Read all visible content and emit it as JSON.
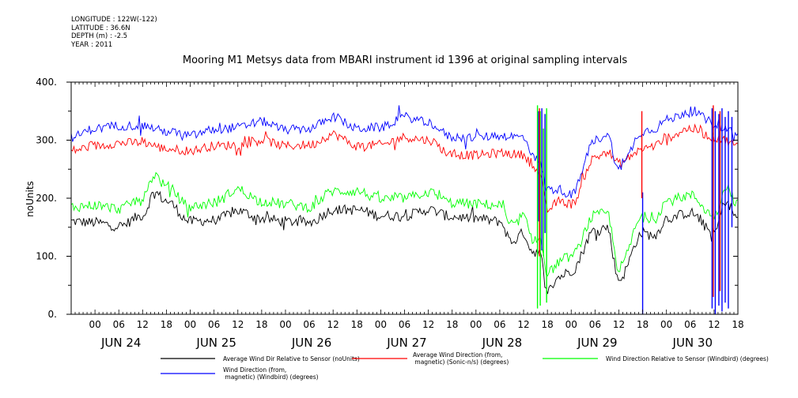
{
  "meta": {
    "longitude": "LONGITUDE : 122W(-122)",
    "latitude": "LATITUDE : 36.6N",
    "depth": "DEPTH (m) : -2.5",
    "year": "YEAR : 2011"
  },
  "chart_data": {
    "type": "line",
    "title": "Mooring M1 Metsys data from MBARI instrument id 1396 at original sampling intervals",
    "ylabel": "noUnits",
    "xlabel": "",
    "ylim": [
      0,
      400
    ],
    "xlim_hours": [
      -6,
      162
    ],
    "grid": false,
    "y_ticks": [
      "0.",
      "100.",
      "200.",
      "300.",
      "400."
    ],
    "y_tick_values": [
      0,
      100,
      200,
      300,
      400
    ],
    "hour_tick_labels": [
      "00",
      "06",
      "12",
      "18"
    ],
    "days": [
      "JUN 24",
      "JUN 25",
      "JUN 26",
      "JUN 27",
      "JUN 28",
      "JUN 29",
      "JUN 30"
    ],
    "series": [
      {
        "name": "Average Wind Dir Relative to Sensor (noUnits)",
        "color": "#000000",
        "x": [
          -6,
          0,
          6,
          12,
          15,
          18,
          24,
          30,
          36,
          42,
          48,
          54,
          60,
          66,
          72,
          78,
          84,
          90,
          96,
          102,
          105,
          108,
          110,
          112,
          114,
          117,
          120,
          126,
          129,
          132,
          138,
          141,
          144,
          150,
          156,
          159,
          162
        ],
        "y": [
          160,
          158,
          152,
          170,
          210,
          195,
          160,
          162,
          178,
          165,
          160,
          158,
          180,
          180,
          170,
          170,
          180,
          168,
          165,
          160,
          125,
          140,
          110,
          105,
          40,
          65,
          75,
          145,
          150,
          60,
          140,
          135,
          165,
          175,
          140,
          195,
          165
        ],
        "noise": 9
      },
      {
        "name": "Average Wind Direction (from, magnetic) (Sonic-n/s) (degrees)",
        "color": "#ff0000",
        "x": [
          -6,
          0,
          6,
          12,
          18,
          24,
          30,
          36,
          42,
          48,
          54,
          60,
          66,
          72,
          78,
          84,
          90,
          96,
          102,
          108,
          110,
          112,
          114,
          117,
          120,
          126,
          129,
          132,
          138,
          141,
          144,
          150,
          156,
          159,
          162
        ],
        "y": [
          282,
          290,
          295,
          296,
          285,
          282,
          290,
          292,
          300,
          290,
          292,
          310,
          290,
          292,
          305,
          300,
          275,
          274,
          278,
          275,
          260,
          240,
          180,
          195,
          190,
          270,
          280,
          260,
          285,
          290,
          305,
          320,
          305,
          300,
          290
        ],
        "noise": 8
      },
      {
        "name": "Wind Direction Relative to Sensor (Windbird) (degrees)",
        "color": "#00ff00",
        "x": [
          -6,
          0,
          6,
          12,
          15,
          18,
          24,
          30,
          36,
          42,
          48,
          54,
          60,
          66,
          72,
          78,
          84,
          90,
          96,
          102,
          105,
          108,
          110,
          112,
          114,
          117,
          120,
          126,
          129,
          132,
          138,
          141,
          144,
          150,
          156,
          159,
          162
        ],
        "y": [
          185,
          188,
          182,
          200,
          240,
          220,
          185,
          192,
          215,
          195,
          190,
          185,
          212,
          212,
          198,
          200,
          210,
          192,
          190,
          188,
          150,
          170,
          130,
          130,
          70,
          90,
          100,
          170,
          175,
          80,
          168,
          165,
          195,
          205,
          170,
          220,
          190
        ],
        "noise": 9
      },
      {
        "name": "Wind Direction (from, magnetic) (Windbird) (degrees)",
        "color": "#0000ff",
        "x": [
          -6,
          0,
          6,
          12,
          18,
          24,
          30,
          36,
          42,
          48,
          54,
          60,
          66,
          72,
          78,
          84,
          90,
          96,
          102,
          108,
          110,
          112,
          114,
          117,
          120,
          126,
          129,
          132,
          138,
          141,
          144,
          150,
          156,
          159,
          162
        ],
        "y": [
          305,
          320,
          325,
          325,
          315,
          308,
          318,
          322,
          332,
          318,
          320,
          340,
          320,
          322,
          340,
          330,
          305,
          305,
          308,
          305,
          280,
          260,
          215,
          215,
          205,
          300,
          310,
          250,
          315,
          320,
          335,
          350,
          330,
          320,
          310
        ],
        "noise": 8
      }
    ],
    "spikes": [
      {
        "color": "#00ff00",
        "x": [
          111.5,
          112.2,
          113.0,
          113.8
        ],
        "ylow": [
          10,
          15,
          100,
          20
        ],
        "yhigh": [
          360,
          350,
          320,
          355
        ]
      },
      {
        "color": "#0000ff",
        "x": [
          111.8,
          112.6,
          113.4,
          138.0,
          155.5,
          156.3,
          157.2,
          158.0,
          158.8,
          159.6,
          160.5
        ],
        "ylow": [
          160,
          110,
          140,
          0,
          10,
          0,
          15,
          5,
          20,
          10,
          150
        ],
        "yhigh": [
          350,
          355,
          345,
          210,
          355,
          350,
          345,
          355,
          340,
          350,
          340
        ]
      },
      {
        "color": "#ff0000",
        "x": [
          112.0,
          137.8,
          155.8,
          157.5
        ],
        "ylow": [
          100,
          200,
          30,
          40
        ],
        "yhigh": [
          355,
          350,
          360,
          350
        ]
      }
    ]
  }
}
